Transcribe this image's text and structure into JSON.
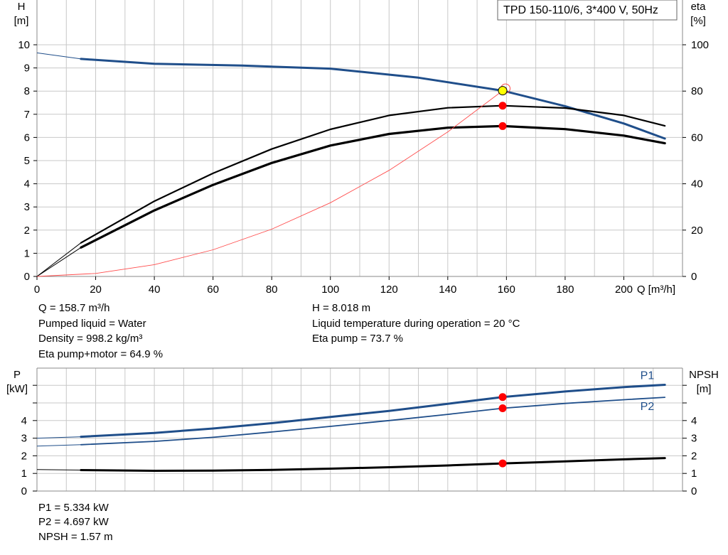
{
  "chart_data": [
    {
      "type": "line",
      "title": "TPD 150-110/6, 3*400 V, 50Hz",
      "xlabel": "Q [m³/h]",
      "ylabel": "H [m]",
      "y2label": "eta [%]",
      "xlim": [
        0,
        220
      ],
      "ylim": [
        0,
        10
      ],
      "y2lim": [
        0,
        100
      ],
      "xticks": [
        0,
        20,
        40,
        60,
        80,
        100,
        120,
        140,
        160,
        180,
        200
      ],
      "yticks": [
        0,
        1,
        2,
        3,
        4,
        5,
        6,
        7,
        8,
        9,
        10
      ],
      "y2ticks": [
        0,
        20,
        40,
        60,
        80,
        100
      ],
      "grid": true,
      "series": [
        {
          "name": "H",
          "axis": "left",
          "color": "#1f4e8a",
          "points": [
            [
              0,
              9.65
            ],
            [
              15,
              9.39
            ],
            [
              40,
              9.18
            ],
            [
              70,
              9.1
            ],
            [
              100,
              8.97
            ],
            [
              130,
              8.58
            ],
            [
              158.7,
              8.018
            ],
            [
              180,
              7.35
            ],
            [
              200,
              6.6
            ],
            [
              214,
              5.95
            ]
          ]
        },
        {
          "name": "Eta pump",
          "axis": "right",
          "color": "#000000",
          "points": [
            [
              0,
              0
            ],
            [
              15,
              14.5
            ],
            [
              40,
              32.5
            ],
            [
              60,
              44.5
            ],
            [
              80,
              55
            ],
            [
              100,
              63.5
            ],
            [
              120,
              69.5
            ],
            [
              140,
              72.8
            ],
            [
              158.7,
              73.7
            ],
            [
              180,
              72.7
            ],
            [
              200,
              69.5
            ],
            [
              214,
              65
            ]
          ]
        },
        {
          "name": "Eta pump+motor",
          "axis": "right",
          "color": "#000000",
          "points": [
            [
              0,
              0
            ],
            [
              15,
              12.5
            ],
            [
              40,
              28.5
            ],
            [
              60,
              39.5
            ],
            [
              80,
              49
            ],
            [
              100,
              56.5
            ],
            [
              120,
              61.5
            ],
            [
              140,
              64.2
            ],
            [
              158.7,
              64.9
            ],
            [
              180,
              63.6
            ],
            [
              200,
              60.8
            ],
            [
              214,
              57.5
            ]
          ]
        },
        {
          "name": "Efficiency parabola",
          "axis": "left",
          "color": "#ff4d4d",
          "points": [
            [
              0,
              0
            ],
            [
              20,
              0.13
            ],
            [
              40,
              0.51
            ],
            [
              60,
              1.15
            ],
            [
              80,
              2.04
            ],
            [
              100,
              3.18
            ],
            [
              120,
              4.58
            ],
            [
              140,
              6.24
            ],
            [
              158.7,
              8.018
            ],
            [
              160,
              8.15
            ]
          ]
        }
      ],
      "markers": [
        {
          "series": "H",
          "x": 158.7,
          "y": 8.018,
          "color": "#ffff00"
        },
        {
          "series": "Eta pump",
          "x": 158.7,
          "y": 73.7,
          "color": "#ff0000"
        },
        {
          "series": "Eta pump+motor",
          "x": 158.7,
          "y": 64.9,
          "color": "#ff0000"
        }
      ]
    },
    {
      "type": "line",
      "ylabel": "P [kW]",
      "y2label": "NPSH [m]",
      "xlim": [
        0,
        220
      ],
      "ylim": [
        0,
        6
      ],
      "y2lim": [
        0,
        6
      ],
      "yticks": [
        0,
        1,
        2,
        3,
        4
      ],
      "y2ticks": [
        0,
        1,
        2,
        3,
        4
      ],
      "grid": true,
      "series": [
        {
          "name": "P1",
          "axis": "left",
          "color": "#1f4e8a",
          "points": [
            [
              0,
              3.0
            ],
            [
              15,
              3.08
            ],
            [
              40,
              3.3
            ],
            [
              60,
              3.55
            ],
            [
              80,
              3.85
            ],
            [
              100,
              4.2
            ],
            [
              120,
              4.55
            ],
            [
              140,
              4.95
            ],
            [
              158.7,
              5.334
            ],
            [
              180,
              5.65
            ],
            [
              200,
              5.9
            ],
            [
              214,
              6.03
            ]
          ]
        },
        {
          "name": "P2",
          "axis": "left",
          "color": "#1f4e8a",
          "points": [
            [
              0,
              2.55
            ],
            [
              15,
              2.63
            ],
            [
              40,
              2.82
            ],
            [
              60,
              3.05
            ],
            [
              80,
              3.35
            ],
            [
              100,
              3.67
            ],
            [
              120,
              4.0
            ],
            [
              140,
              4.35
            ],
            [
              158.7,
              4.697
            ],
            [
              180,
              4.97
            ],
            [
              200,
              5.18
            ],
            [
              214,
              5.32
            ]
          ]
        },
        {
          "name": "NPSH",
          "axis": "right",
          "color": "#000000",
          "points": [
            [
              0,
              1.22
            ],
            [
              15,
              1.19
            ],
            [
              40,
              1.15
            ],
            [
              60,
              1.16
            ],
            [
              80,
              1.2
            ],
            [
              100,
              1.27
            ],
            [
              120,
              1.35
            ],
            [
              140,
              1.45
            ],
            [
              158.7,
              1.57
            ],
            [
              180,
              1.68
            ],
            [
              200,
              1.8
            ],
            [
              214,
              1.87
            ]
          ]
        }
      ],
      "markers": [
        {
          "series": "P1",
          "x": 158.7,
          "y": 5.334,
          "color": "#ff0000"
        },
        {
          "series": "P2",
          "x": 158.7,
          "y": 4.697,
          "color": "#ff0000"
        },
        {
          "series": "NPSH",
          "x": 158.7,
          "y": 1.57,
          "color": "#ff0000"
        }
      ]
    }
  ],
  "info_top_left": [
    "Q = 158.7 m³/h",
    "Pumped liquid = Water",
    "Density = 998.2 kg/m³",
    "Eta pump+motor = 64.9 %"
  ],
  "info_top_right": [
    "H = 8.018 m",
    "Liquid temperature during operation = 20 °C",
    "Eta pump = 73.7 %"
  ],
  "info_bottom": [
    "P1 = 5.334 kW",
    "P2 = 4.697 kW",
    "NPSH = 1.57 m"
  ],
  "colors": {
    "grid": "#c8c8c8",
    "frame": "#888888",
    "accent": "#1f4e8a",
    "marker": "#ff0000",
    "duty_point": "#ffff00"
  }
}
